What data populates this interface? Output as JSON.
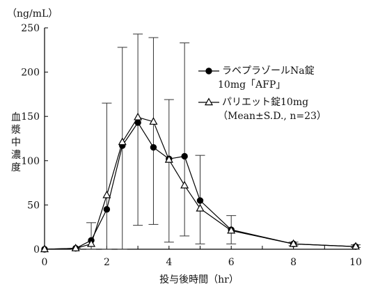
{
  "chart_data": {
    "type": "line",
    "xlabel": "投与後時間（hr）",
    "ylabel": "血漿中濃度",
    "yunit": "（ng/mL）",
    "xlim": [
      0,
      10
    ],
    "ylim": [
      0,
      250
    ],
    "xticks": [
      "0",
      "2",
      "4",
      "6",
      "8",
      "10"
    ],
    "yticks": [
      "0",
      "50",
      "100",
      "150",
      "200",
      "250"
    ],
    "series": [
      {
        "name": "ラベプラゾールNa錠10mg「AFP」",
        "marker": "filled-circle",
        "color": "#000000",
        "x": [
          0,
          1,
          1.5,
          2,
          2.5,
          3,
          3.5,
          4,
          4.5,
          5,
          6,
          8,
          10
        ],
        "y": [
          0,
          1,
          10,
          45,
          117,
          143,
          115,
          102,
          105,
          55,
          22,
          6,
          3
        ]
      },
      {
        "name": "パリエット錠10mg",
        "marker": "open-triangle",
        "color": "#000000",
        "x": [
          0,
          1,
          1.5,
          2,
          2.5,
          3,
          3.5,
          4,
          4.5,
          5,
          6,
          8,
          10
        ],
        "y": [
          0,
          1,
          6,
          61,
          121,
          149,
          144,
          101,
          72,
          46,
          21,
          6,
          3
        ],
        "error_low": [
          0,
          0,
          0,
          0,
          0,
          27,
          28,
          8,
          15,
          6,
          6,
          4,
          2
        ],
        "error_high": [
          0,
          1,
          30,
          165,
          228,
          243,
          239,
          169,
          233,
          106,
          38,
          8,
          5
        ]
      }
    ],
    "legend": {
      "position": "top-right",
      "entries": [
        {
          "lines": [
            "ラベプラゾールNa錠",
            "10mg「AFP」"
          ]
        },
        {
          "lines": [
            "パリエット錠10mg",
            "（Mean±S.D., n=23）"
          ]
        }
      ]
    }
  }
}
